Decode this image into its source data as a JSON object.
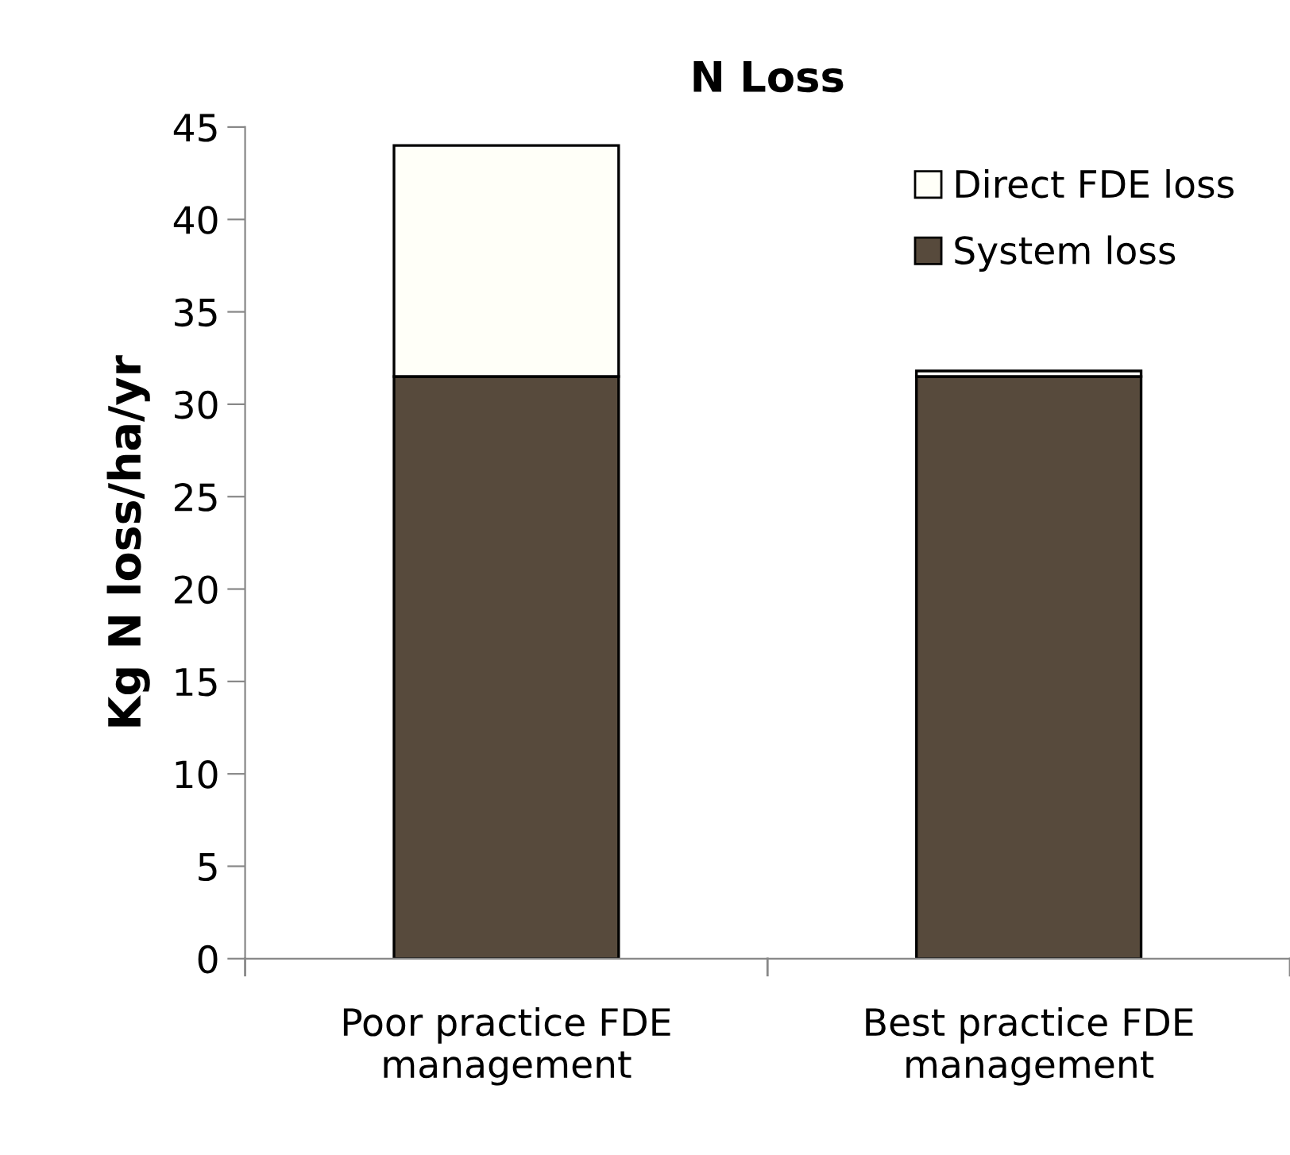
{
  "chart_data": {
    "type": "bar",
    "title": "N Loss",
    "ylabel": "Kg N loss/ha/yr",
    "categories": [
      "Poor practice FDE\nmanagement",
      "Best practice FDE\nmanagement"
    ],
    "stacked": true,
    "series": [
      {
        "name": "System loss",
        "color": "#574a3c",
        "values": [
          31.5,
          31.5
        ]
      },
      {
        "name": "Direct FDE loss",
        "color": "#fffff8",
        "values": [
          12.5,
          0.3
        ]
      }
    ],
    "ylim": [
      0,
      45
    ],
    "yticks": [
      0,
      5,
      10,
      15,
      20,
      25,
      30,
      35,
      40,
      45
    ],
    "grid": false,
    "legend": "top right"
  }
}
